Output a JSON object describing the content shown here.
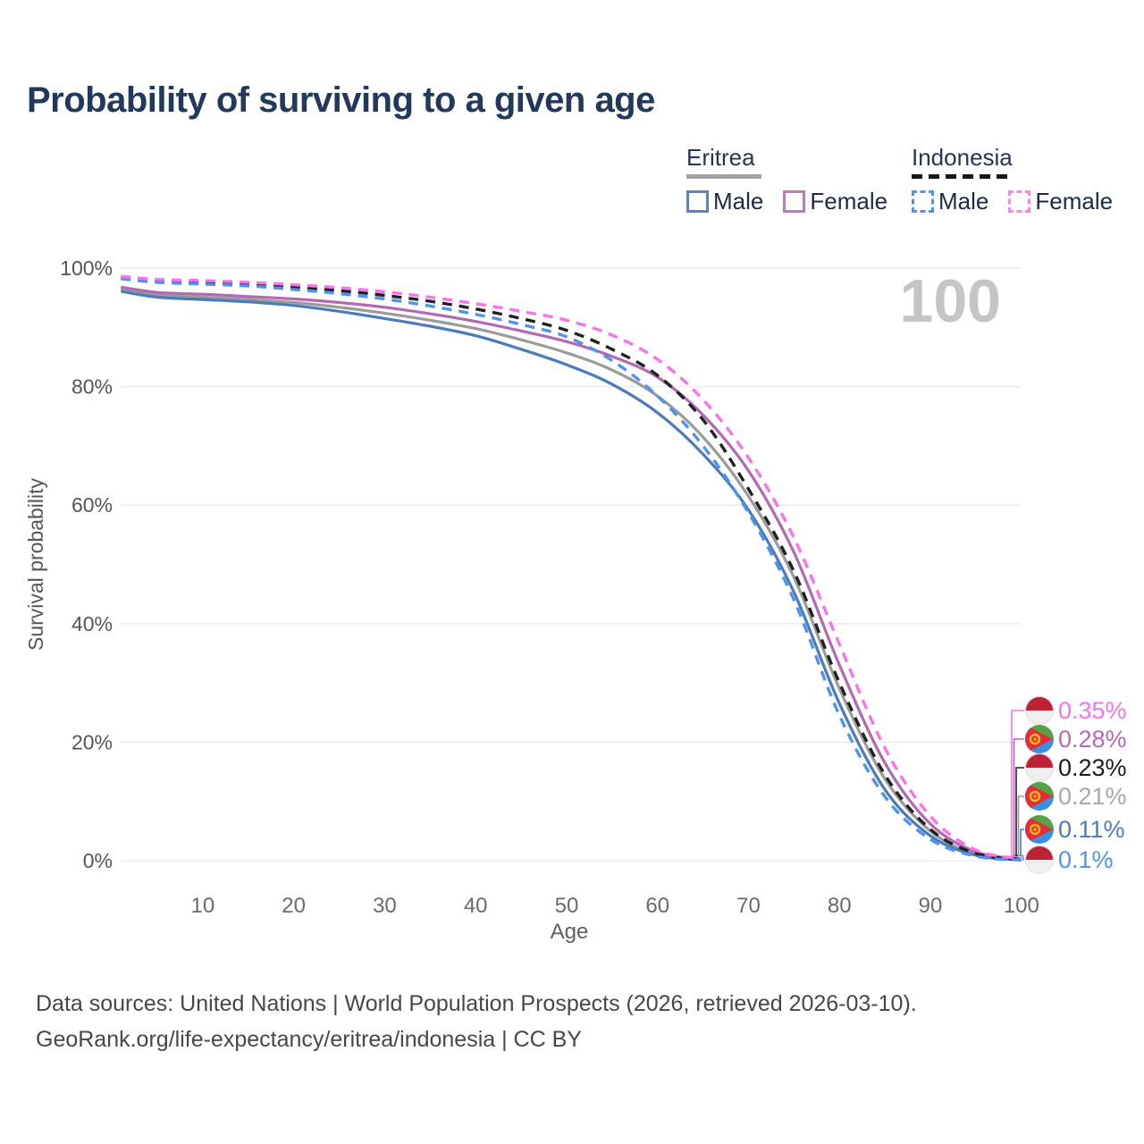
{
  "title": "Probability of surviving to a given age",
  "watermark": "100",
  "legend": {
    "eritrea": {
      "name": "Eritrea",
      "male_label": "Male",
      "female_label": "Female"
    },
    "indonesia": {
      "name": "Indonesia",
      "male_label": "Male",
      "female_label": "Female"
    }
  },
  "colors": {
    "title": "#22395e",
    "eritrea_male": "#4a7bbd",
    "eritrea_female": "#b268b2",
    "eritrea_total": "#9b9b9b",
    "indonesia_male": "#4f92f0",
    "indonesia_female": "#fb6ff0",
    "indonesia_total": "#212121",
    "gridline": "#e9e9e9",
    "watermark": "#c5c5c5"
  },
  "chart_data": {
    "type": "line",
    "title": "Probability of surviving to a given age",
    "xlabel": "Age",
    "ylabel": "Survival probability",
    "xlim": [
      1,
      100
    ],
    "ylim": [
      0,
      100
    ],
    "grid": true,
    "legend_position": "top-right",
    "xticks": [
      10,
      20,
      30,
      40,
      50,
      60,
      70,
      80,
      90,
      100
    ],
    "yticks": [
      0,
      20,
      40,
      60,
      80,
      100
    ],
    "ytick_suffix": "%",
    "x": [
      1,
      5,
      10,
      15,
      20,
      25,
      30,
      35,
      40,
      45,
      50,
      55,
      60,
      65,
      70,
      75,
      80,
      85,
      90,
      95,
      100
    ],
    "series": [
      {
        "name": "Eritrea",
        "country": "Eritrea",
        "sex": "Both sexes",
        "style": "solid",
        "color": "#9b9b9b",
        "end_label": "0.21%",
        "label_color": "#a8a8a8",
        "flag": "eritrea",
        "values": [
          96.4,
          95.5,
          95.1,
          94.7,
          94.2,
          93.4,
          92.4,
          91.2,
          89.8,
          87.9,
          85.7,
          82.8,
          78.4,
          71.5,
          61.5,
          47.8,
          29.0,
          13.8,
          5.0,
          1.1,
          0.21
        ]
      },
      {
        "name": "Eritrea Male",
        "country": "Eritrea",
        "sex": "Male",
        "style": "solid",
        "color": "#4a7bbd",
        "end_label": "0.11%",
        "label_color": "#4a7bbd",
        "flag": "eritrea",
        "values": [
          96.1,
          95.1,
          94.7,
          94.3,
          93.7,
          92.7,
          91.5,
          90.2,
          88.6,
          86.3,
          83.7,
          80.4,
          75.6,
          68.6,
          59.2,
          45.3,
          26.5,
          12.0,
          4.2,
          0.9,
          0.11
        ]
      },
      {
        "name": "Eritrea Female",
        "country": "Eritrea",
        "sex": "Female",
        "style": "solid",
        "color": "#b268b2",
        "end_label": "0.28%",
        "label_color": "#b56ab5",
        "flag": "eritrea",
        "values": [
          96.8,
          95.9,
          95.6,
          95.2,
          94.8,
          94.2,
          93.4,
          92.3,
          91.0,
          89.4,
          87.6,
          85.1,
          81.6,
          75.2,
          65.8,
          52.0,
          33.0,
          16.5,
          6.2,
          1.5,
          0.28
        ]
      },
      {
        "name": "Indonesia",
        "country": "Indonesia",
        "sex": "Both sexes",
        "style": "dashed",
        "color": "#212121",
        "end_label": "0.23%",
        "label_color": "#1c1c1c",
        "flag": "indonesia",
        "values": [
          98.4,
          97.8,
          97.6,
          97.3,
          96.8,
          96.2,
          95.4,
          94.4,
          93.1,
          91.5,
          89.5,
          86.3,
          81.9,
          74.4,
          62.7,
          48.8,
          30.0,
          14.5,
          5.3,
          1.2,
          0.23
        ]
      },
      {
        "name": "Indonesia Male",
        "country": "Indonesia",
        "sex": "Male",
        "style": "dashed",
        "color": "#4f92f0",
        "end_label": "0.1%",
        "label_color": "#4f92f0",
        "flag": "indonesia",
        "values": [
          98.2,
          97.6,
          97.3,
          97.0,
          96.4,
          95.7,
          94.8,
          93.6,
          92.2,
          90.5,
          88.4,
          84.4,
          78.4,
          70.0,
          58.7,
          44.0,
          24.5,
          10.8,
          3.6,
          0.75,
          0.1
        ]
      },
      {
        "name": "Indonesia Female",
        "country": "Indonesia",
        "sex": "Female",
        "style": "dashed",
        "color": "#fb6ff0",
        "end_label": "0.35%",
        "label_color": "#fb6ff0",
        "flag": "indonesia",
        "values": [
          98.6,
          98.1,
          97.9,
          97.6,
          97.2,
          96.7,
          96.0,
          95.1,
          94.0,
          92.7,
          91.2,
          88.7,
          84.6,
          77.8,
          68.0,
          54.5,
          36.5,
          19.0,
          7.5,
          1.8,
          0.35
        ]
      }
    ]
  },
  "footer": {
    "line1": "Data sources: United Nations | World Population Prospects (2026, retrieved 2026-03-10).",
    "line2": "GeoRank.org/life-expectancy/eritrea/indonesia | CC BY"
  }
}
